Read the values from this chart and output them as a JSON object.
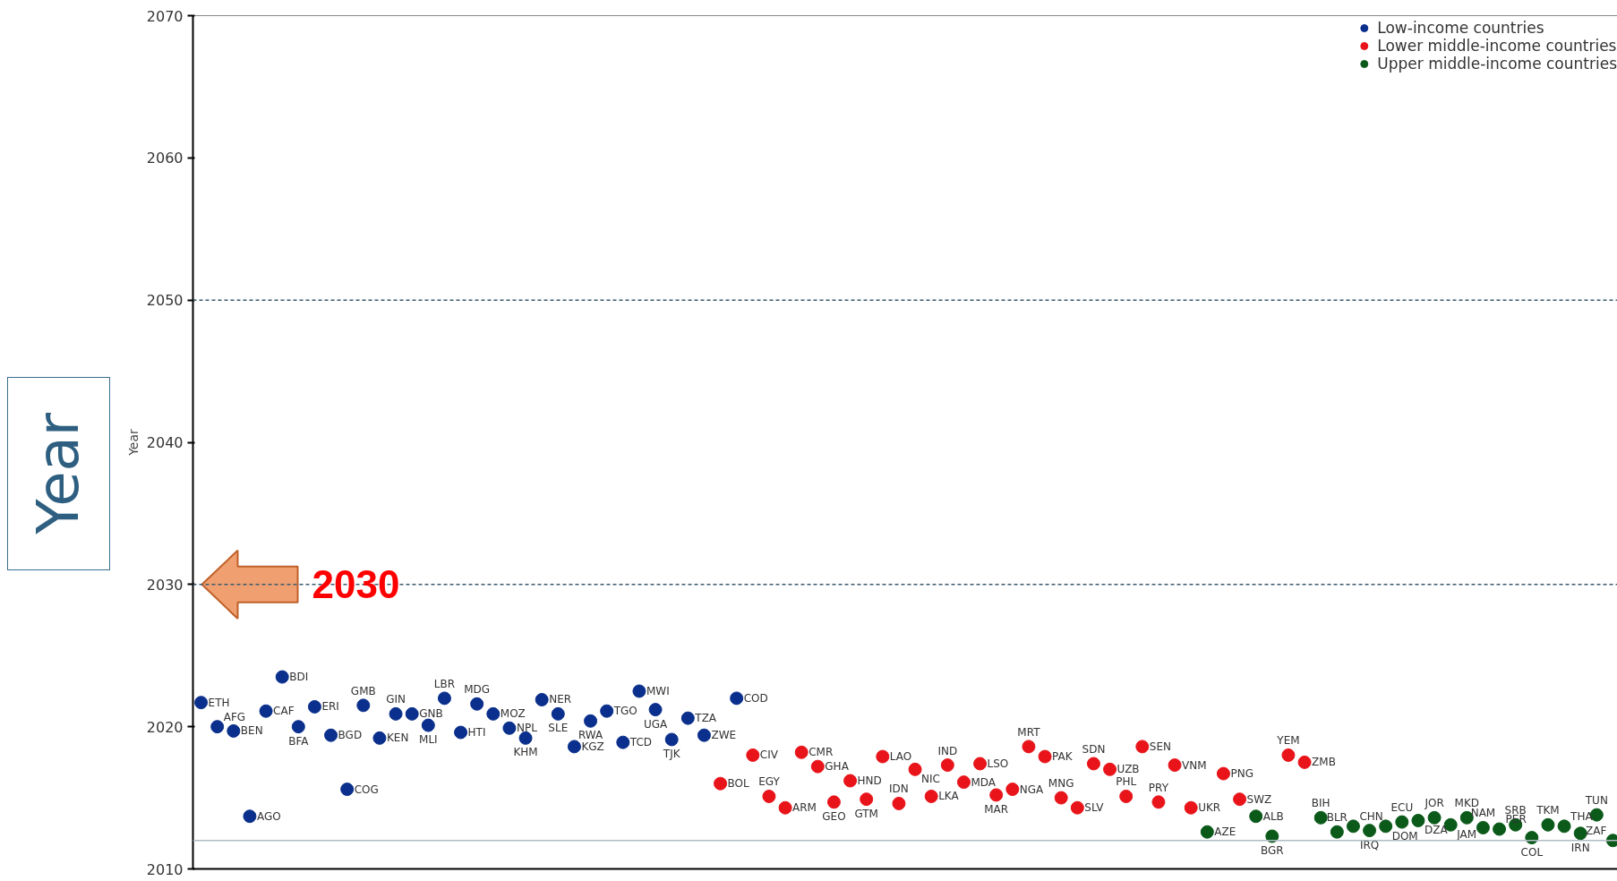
{
  "chart_data": {
    "type": "scatter",
    "ylabel": "Year",
    "categories": [
      null,
      null,
      null,
      null,
      null,
      null,
      null,
      null,
      null,
      null,
      null,
      null,
      null,
      null,
      null,
      null,
      null,
      null,
      null,
      null,
      null,
      null,
      null,
      null,
      null,
      null,
      null,
      null,
      null,
      null,
      null,
      null,
      null,
      null,
      null,
      null,
      null,
      null,
      null,
      null,
      null,
      null,
      null,
      null,
      null,
      null,
      null,
      null,
      null,
      null,
      null,
      null,
      null,
      null,
      null,
      null,
      null,
      null,
      null,
      null,
      null,
      null,
      null,
      null,
      null,
      null,
      null,
      null,
      null,
      null,
      null,
      null,
      null,
      null,
      null,
      null,
      null,
      null,
      null,
      null,
      null,
      null,
      null,
      null,
      null,
      null,
      null,
      null
    ],
    "series": [
      {
        "name": "Low-income countries",
        "color": "#0a2f8c",
        "values": [
          2021.7,
          2020.0,
          2019.7,
          2013.7,
          2021.1,
          2023.5,
          2020.0,
          2021.4,
          2019.4,
          2015.6,
          2021.5,
          2019.2,
          2020.9,
          2020.9,
          2020.1,
          2022.0,
          2019.6,
          2021.6,
          2020.9,
          2019.9,
          2019.2,
          2021.9,
          2020.9,
          2018.6,
          2020.4,
          2021.1,
          2018.9,
          2022.5,
          2021.2,
          2019.1,
          2020.6,
          2019.4,
          null,
          2022.0,
          null,
          null,
          null,
          null,
          null,
          null,
          null,
          null,
          null,
          null,
          null,
          null,
          null,
          null,
          null,
          null,
          null,
          null,
          null,
          null,
          null,
          null,
          null,
          null,
          null,
          null,
          null,
          null,
          null,
          null,
          null,
          null,
          null,
          null,
          null,
          null,
          null,
          null,
          null,
          null,
          null,
          null,
          null,
          null,
          null,
          null,
          null,
          null,
          null,
          null,
          null,
          null,
          null,
          null
        ],
        "value_labels": [
          "ETH",
          "AFG",
          "BEN",
          "AGO",
          "CAF",
          "BDI",
          "BFA",
          "ERI",
          "BGD",
          "COG",
          "GMB",
          "KEN",
          "GIN",
          "GNB",
          "MLI",
          "LBR",
          "HTI",
          "MDG",
          "MOZ",
          "NPL",
          "KHM",
          "NER",
          "SLE",
          "KGZ",
          "RWA",
          "TGO",
          "TCD",
          "MWI",
          "UGA",
          "TJK",
          "TZA",
          "ZWE",
          null,
          "COD",
          null,
          null,
          null,
          null,
          null,
          null,
          null,
          null,
          null,
          null,
          null,
          null,
          null,
          null,
          null,
          null,
          null,
          null,
          null,
          null,
          null,
          null,
          null,
          null,
          null,
          null,
          null,
          null,
          null,
          null,
          null,
          null,
          null,
          null,
          null,
          null,
          null,
          null,
          null,
          null,
          null,
          null,
          null,
          null,
          null,
          null,
          null,
          null,
          null,
          null,
          null,
          null,
          null,
          null
        ]
      },
      {
        "name": "Lower middle-income countries",
        "color": "#e8141a",
        "values": [
          null,
          null,
          null,
          null,
          null,
          null,
          null,
          null,
          null,
          null,
          null,
          null,
          null,
          null,
          null,
          null,
          null,
          null,
          null,
          null,
          null,
          null,
          null,
          null,
          null,
          null,
          null,
          null,
          null,
          null,
          null,
          null,
          2016.0,
          null,
          2018.0,
          2015.1,
          2014.3,
          2018.2,
          2017.2,
          2014.7,
          2016.2,
          2014.9,
          2017.9,
          2014.6,
          2017.0,
          2015.1,
          2017.3,
          2016.1,
          2017.4,
          2015.2,
          2015.6,
          2018.6,
          2017.9,
          2015.0,
          2014.3,
          2017.4,
          2017.0,
          2015.1,
          2018.6,
          2014.7,
          2017.3,
          2014.3,
          null,
          2016.7,
          2014.9,
          null,
          null,
          2018.0,
          2017.5,
          null,
          null,
          null,
          null,
          null,
          null,
          null,
          null,
          null,
          null,
          null,
          null,
          null,
          null,
          null,
          null,
          null,
          null,
          null
        ],
        "value_labels": [
          null,
          null,
          null,
          null,
          null,
          null,
          null,
          null,
          null,
          null,
          null,
          null,
          null,
          null,
          null,
          null,
          null,
          null,
          null,
          null,
          null,
          null,
          null,
          null,
          null,
          null,
          null,
          null,
          null,
          null,
          null,
          null,
          "BOL",
          null,
          "CIV",
          "EGY",
          "ARM",
          "CMR",
          "GHA",
          "GEO",
          "HND",
          "GTM",
          "LAO",
          "IDN",
          "NIC",
          "LKA",
          "IND",
          "MDA",
          "LSO",
          "MAR",
          "NGA",
          "MRT",
          "PAK",
          "MNG",
          "SLV",
          "SDN",
          "UZB",
          "PHL",
          "SEN",
          "PRY",
          "VNM",
          "UKR",
          null,
          "PNG",
          "SWZ",
          null,
          null,
          "YEM",
          "ZMB",
          null,
          null,
          null,
          null,
          null,
          null,
          null,
          null,
          null,
          null,
          null,
          null,
          null,
          null,
          null,
          null,
          null,
          null,
          null
        ]
      },
      {
        "name": "Upper middle-income countries",
        "color": "#0b5a1a",
        "values": [
          null,
          null,
          null,
          null,
          null,
          null,
          null,
          null,
          null,
          null,
          null,
          null,
          null,
          null,
          null,
          null,
          null,
          null,
          null,
          null,
          null,
          null,
          null,
          null,
          null,
          null,
          null,
          null,
          null,
          null,
          null,
          null,
          null,
          null,
          null,
          null,
          null,
          null,
          null,
          null,
          null,
          null,
          null,
          null,
          null,
          null,
          null,
          null,
          null,
          null,
          null,
          null,
          null,
          null,
          null,
          null,
          null,
          null,
          null,
          null,
          null,
          null,
          2012.6,
          null,
          null,
          2013.7,
          2012.3,
          null,
          null,
          2013.6,
          2012.6,
          2013.0,
          2012.7,
          2013.0,
          2013.3,
          2013.4,
          2013.6,
          2013.1,
          2013.6,
          2012.9,
          2012.8,
          2013.1,
          2012.2,
          2013.1,
          2013.0,
          2012.5,
          2013.8,
          2012.0
        ],
        "value_labels": [
          null,
          null,
          null,
          null,
          null,
          null,
          null,
          null,
          null,
          null,
          null,
          null,
          null,
          null,
          null,
          null,
          null,
          null,
          null,
          null,
          null,
          null,
          null,
          null,
          null,
          null,
          null,
          null,
          null,
          null,
          null,
          null,
          null,
          null,
          null,
          null,
          null,
          null,
          null,
          null,
          null,
          null,
          null,
          null,
          null,
          null,
          null,
          null,
          null,
          null,
          null,
          null,
          null,
          null,
          null,
          null,
          null,
          null,
          null,
          null,
          null,
          null,
          "AZE",
          null,
          null,
          "ALB",
          "BGR",
          null,
          null,
          "BIH",
          "BLR",
          "CHN",
          "IRQ",
          "DOM",
          "ECU",
          "DZA",
          "JOR",
          "JAM",
          "MKD",
          "NAM",
          "PER",
          "SRB",
          "COL",
          "TKM",
          "THA",
          "IRN",
          "TUN",
          "ZAF"
        ]
      }
    ],
    "ylim": [
      2010,
      2070
    ],
    "yticks": [
      2010,
      2020,
      2030,
      2040,
      2050,
      2060,
      2070
    ],
    "ref_lines": [
      {
        "axis": "y",
        "value": 2050,
        "color": "#3a5a70",
        "line_style": "dashed"
      },
      {
        "axis": "y",
        "value": 2030,
        "color": "#3a5a70",
        "line_style": "dashed"
      },
      {
        "axis": "y",
        "value": 2012,
        "color": "#b0bcc4",
        "line_style": "solid"
      }
    ],
    "annotations": [
      "Year",
      {
        "text": "2030",
        "y": 2030
      }
    ],
    "marker": "circle",
    "grid": false,
    "legend": "top right"
  }
}
